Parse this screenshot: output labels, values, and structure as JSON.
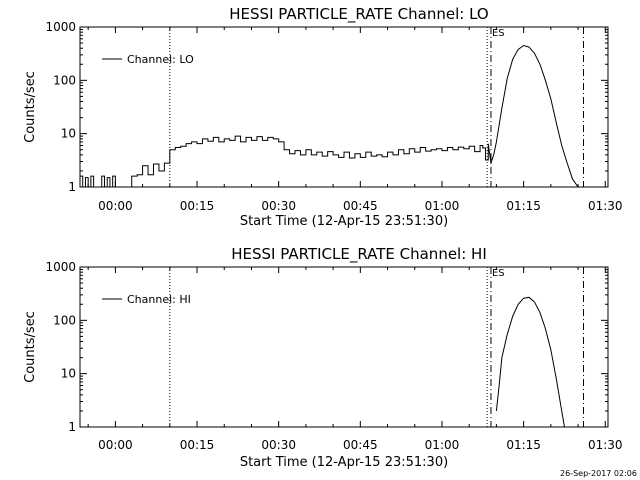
{
  "footer": {
    "timestamp": "26-Sep-2017 02:06"
  },
  "chart_data": [
    {
      "type": "line",
      "title": "HESSI PARTICLE_RATE Channel: LO",
      "xlabel": "Start Time (12-Apr-15 23:51:30)",
      "ylabel": "Counts/sec",
      "yscale": "log",
      "ylim": [
        1,
        1000
      ],
      "xlim_minutes_after_midnight": [
        -6.5,
        90.5
      ],
      "xticks": [
        {
          "value": 0,
          "label": "00:00"
        },
        {
          "value": 15,
          "label": "00:15"
        },
        {
          "value": 30,
          "label": "00:30"
        },
        {
          "value": 45,
          "label": "00:45"
        },
        {
          "value": 60,
          "label": "01:00"
        },
        {
          "value": 75,
          "label": "01:15"
        },
        {
          "value": 90,
          "label": "01:30"
        }
      ],
      "yticks": [
        {
          "value": 1,
          "label": "1"
        },
        {
          "value": 10,
          "label": "10"
        },
        {
          "value": 100,
          "label": "100"
        },
        {
          "value": 1000,
          "label": "1000"
        }
      ],
      "legend": {
        "entries": [
          "Channel: LO"
        ],
        "position": "top-left"
      },
      "markers": [
        {
          "x": 10.0,
          "style": "dotted"
        },
        {
          "x": 68.3,
          "style": "dotted"
        },
        {
          "x": 69.0,
          "style": "dash-dot",
          "label": "ES"
        },
        {
          "x": 86.0,
          "style": "dash-dot"
        }
      ],
      "series": [
        {
          "name": "Channel: LO",
          "x": [
            -6.5,
            -6.0,
            -5.5,
            -5.0,
            -4.5,
            -4.0,
            -3.5,
            -3.0,
            -2.5,
            -2.0,
            -1.5,
            -1.0,
            -0.5,
            0.0,
            0.5,
            1.0,
            2.0,
            3.0,
            4.0,
            5.0,
            6.0,
            7.0,
            8.0,
            9.0,
            10.0,
            11.0,
            12.0,
            13.0,
            14.0,
            15.0,
            16.0,
            17.0,
            18.0,
            19.0,
            20.0,
            21.0,
            22.0,
            23.0,
            24.0,
            25.0,
            26.0,
            27.0,
            28.0,
            29.0,
            30.0,
            31.0,
            32.0,
            33.0,
            34.0,
            35.0,
            36.0,
            37.0,
            38.0,
            39.0,
            40.0,
            41.0,
            42.0,
            43.0,
            44.0,
            45.0,
            46.0,
            47.0,
            48.0,
            49.0,
            50.0,
            51.0,
            52.0,
            53.0,
            54.0,
            55.0,
            56.0,
            57.0,
            58.0,
            59.0,
            60.0,
            61.0,
            62.0,
            63.0,
            64.0,
            65.0,
            66.0,
            67.0,
            67.5,
            68.0,
            68.5,
            69.0,
            69.5,
            70.0,
            71.0,
            72.0,
            73.0,
            74.0,
            75.0,
            76.0,
            77.0,
            78.0,
            79.0,
            80.0,
            81.0,
            82.0,
            83.0,
            84.0,
            85.0
          ],
          "y": [
            1.6,
            1.0,
            1.5,
            1.0,
            1.6,
            1.0,
            1.0,
            1.0,
            1.6,
            1.0,
            1.5,
            1.0,
            1.6,
            1.0,
            1.0,
            1.0,
            1.0,
            1.6,
            1.7,
            2.5,
            1.7,
            2.7,
            2.0,
            2.8,
            5.0,
            5.5,
            5.8,
            6.5,
            7.0,
            6.5,
            8.0,
            7.2,
            8.5,
            7.0,
            8.0,
            7.5,
            9.0,
            7.0,
            8.5,
            7.5,
            8.8,
            7.5,
            8.5,
            8.0,
            7.0,
            5.0,
            4.2,
            4.8,
            4.0,
            5.0,
            4.0,
            4.5,
            3.8,
            4.6,
            4.0,
            3.6,
            4.5,
            3.5,
            4.2,
            3.6,
            4.5,
            3.8,
            4.0,
            3.7,
            4.5,
            4.0,
            5.0,
            4.2,
            5.2,
            4.5,
            5.5,
            4.7,
            5.0,
            5.2,
            4.8,
            5.5,
            5.0,
            5.6,
            5.2,
            5.8,
            4.6,
            6.0,
            5.4,
            3.2,
            6.5,
            2.8,
            4.0,
            7.0,
            30,
            110,
            250,
            380,
            450,
            420,
            320,
            200,
            100,
            45,
            16,
            6,
            2.8,
            1.4,
            1.0
          ]
        }
      ]
    },
    {
      "type": "line",
      "title": "HESSI PARTICLE_RATE Channel: HI",
      "xlabel": "Start Time (12-Apr-15 23:51:30)",
      "ylabel": "Counts/sec",
      "yscale": "log",
      "ylim": [
        1,
        1000
      ],
      "xlim_minutes_after_midnight": [
        -6.5,
        90.5
      ],
      "xticks": [
        {
          "value": 0,
          "label": "00:00"
        },
        {
          "value": 15,
          "label": "00:15"
        },
        {
          "value": 30,
          "label": "00:30"
        },
        {
          "value": 45,
          "label": "00:45"
        },
        {
          "value": 60,
          "label": "01:00"
        },
        {
          "value": 75,
          "label": "01:15"
        },
        {
          "value": 90,
          "label": "01:30"
        }
      ],
      "yticks": [
        {
          "value": 1,
          "label": "1"
        },
        {
          "value": 10,
          "label": "10"
        },
        {
          "value": 100,
          "label": "100"
        },
        {
          "value": 1000,
          "label": "1000"
        }
      ],
      "legend": {
        "entries": [
          "Channel: HI"
        ],
        "position": "top-left"
      },
      "markers": [
        {
          "x": 10.0,
          "style": "dotted"
        },
        {
          "x": 68.3,
          "style": "dotted"
        },
        {
          "x": 69.0,
          "style": "dash-dot",
          "label": "ES"
        },
        {
          "x": 86.0,
          "style": "dash-dot"
        }
      ],
      "series": [
        {
          "name": "Channel: HI",
          "x": [
            70.0,
            70.5,
            71.0,
            72.0,
            73.0,
            74.0,
            75.0,
            76.0,
            77.0,
            78.0,
            79.0,
            80.0,
            81.0,
            82.0,
            82.5
          ],
          "y": [
            2.0,
            6.0,
            20,
            55,
            120,
            200,
            260,
            270,
            220,
            140,
            70,
            28,
            8,
            2.0,
            1.0
          ]
        }
      ]
    }
  ]
}
